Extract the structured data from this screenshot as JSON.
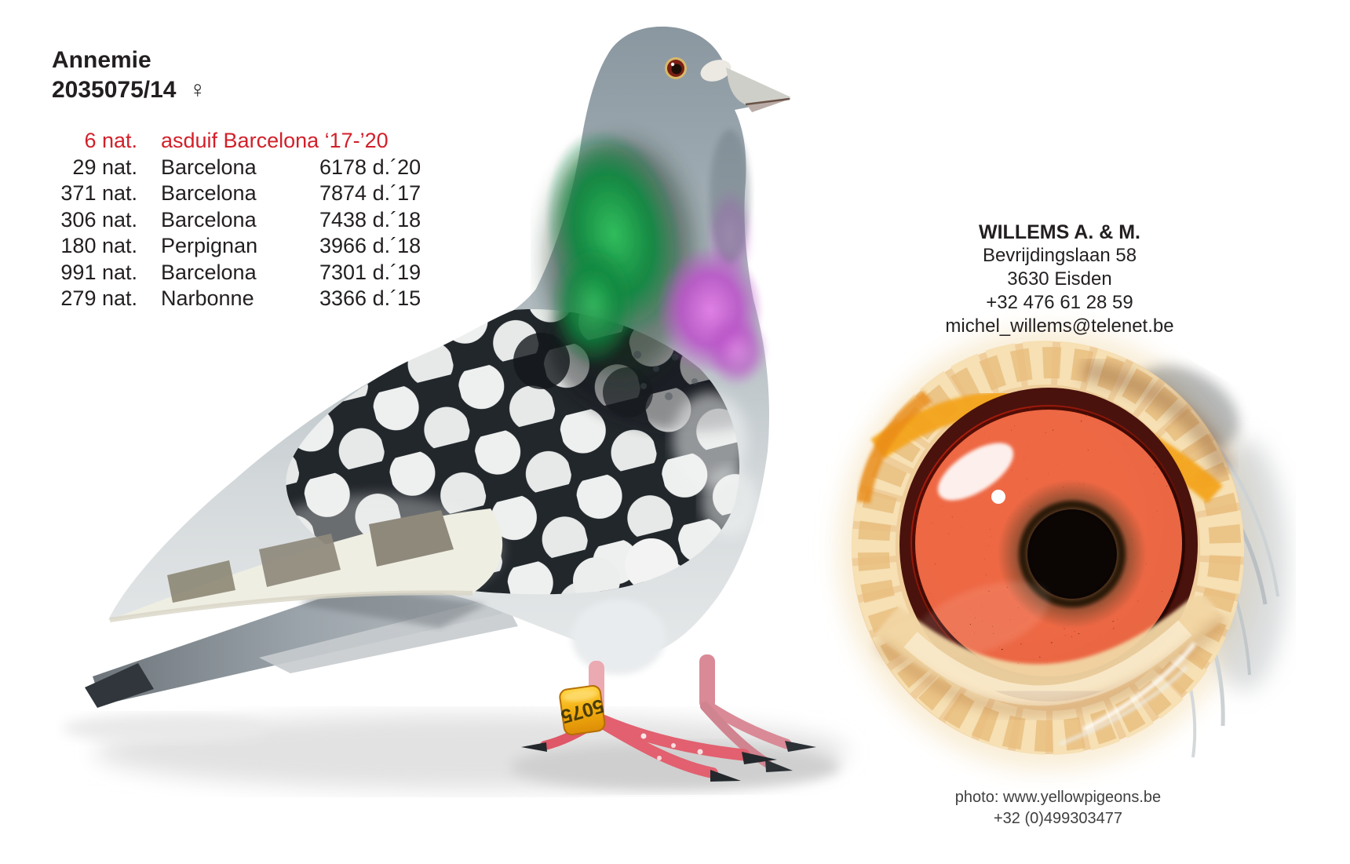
{
  "title": {
    "name": "Annemie",
    "ring_number": "2035075/14",
    "sex_symbol": "♀"
  },
  "results": {
    "accent_color": "#d2202a",
    "header": {
      "rank": "6 nat.",
      "label": "asduif Barcelona ‘17-’20"
    },
    "rows": [
      {
        "rank": "29 nat.",
        "race": "Barcelona",
        "result": "6178 d.´20"
      },
      {
        "rank": "371 nat.",
        "race": "Barcelona",
        "result": "7874 d.´17"
      },
      {
        "rank": "306 nat.",
        "race": "Barcelona",
        "result": "7438 d.´18"
      },
      {
        "rank": "180 nat.",
        "race": "Perpignan",
        "result": "3966 d.´18"
      },
      {
        "rank": "991 nat.",
        "race": "Barcelona",
        "result": "7301 d.´19"
      },
      {
        "rank": "279 nat.",
        "race": "Narbonne",
        "result": "3366 d.´15"
      }
    ]
  },
  "contact": {
    "name": "WILLEMS A. & M.",
    "address_line1": "Bevrijdingslaan 58",
    "address_line2": "3630 Eisden",
    "phone": "+32 476 61 28 59",
    "email": "michel_willems@telenet.be"
  },
  "credit": {
    "line1": "photo: www.yellowpigeons.be",
    "line2": "+32 (0)499303477"
  },
  "images": {
    "pigeon_photo": "racing-pigeon-side-view",
    "eye_photo": "pigeon-eye-close-up",
    "leg_band_text": "5075",
    "band_color": "#f5b40f"
  }
}
